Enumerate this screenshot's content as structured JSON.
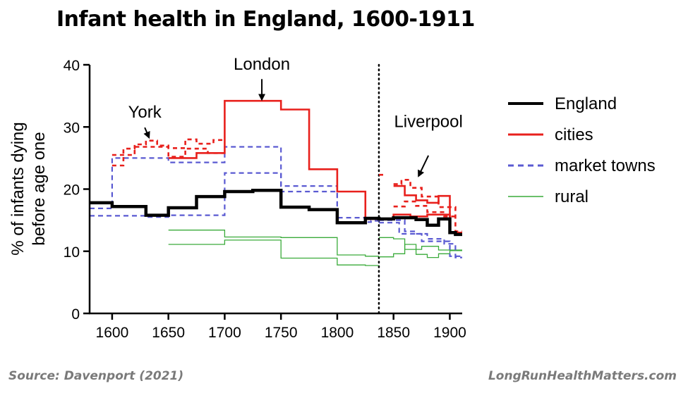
{
  "title": "Infant health in England, 1600-1911",
  "source": "Source: Davenport (2021)",
  "website": "LongRunHealthMatters.com",
  "colors": {
    "england": "#000000",
    "cities": "#e8201c",
    "market_towns": "#5a5ad2",
    "rural": "#3aab3a"
  },
  "chart_data": {
    "type": "line",
    "step": true,
    "title": "Infant health in England, 1600-1911",
    "xlabel": "",
    "ylabel": "% of infants dying before age one",
    "xlim": [
      1580,
      1911
    ],
    "ylim": [
      0,
      40
    ],
    "xticks": [
      1600,
      1650,
      1700,
      1750,
      1800,
      1850,
      1900
    ],
    "yticks": [
      0,
      10,
      20,
      30,
      40
    ],
    "reference_line": {
      "x": 1837,
      "style": "dotted"
    },
    "series": [
      {
        "name": "England",
        "role": "england",
        "lines": [
          [
            [
              1580,
              17.8
            ],
            [
              1600,
              17.8
            ],
            [
              1600,
              17.2
            ],
            [
              1630,
              17.2
            ],
            [
              1630,
              15.8
            ],
            [
              1650,
              15.8
            ],
            [
              1650,
              17.0
            ],
            [
              1675,
              17.0
            ],
            [
              1675,
              18.8
            ],
            [
              1700,
              18.8
            ],
            [
              1700,
              19.6
            ],
            [
              1725,
              19.6
            ],
            [
              1725,
              19.8
            ],
            [
              1750,
              19.8
            ],
            [
              1750,
              17.1
            ],
            [
              1775,
              17.1
            ],
            [
              1775,
              16.7
            ],
            [
              1800,
              16.7
            ],
            [
              1800,
              14.6
            ],
            [
              1825,
              14.6
            ],
            [
              1825,
              15.3
            ],
            [
              1837,
              15.3
            ],
            [
              1837,
              15.2
            ],
            [
              1850,
              15.2
            ],
            [
              1850,
              15.4
            ],
            [
              1870,
              15.4
            ],
            [
              1870,
              15.1
            ],
            [
              1880,
              15.1
            ],
            [
              1880,
              14.2
            ],
            [
              1890,
              14.2
            ],
            [
              1890,
              15.2
            ],
            [
              1900,
              15.2
            ],
            [
              1900,
              13.0
            ],
            [
              1905,
              13.0
            ],
            [
              1905,
              12.7
            ],
            [
              1911,
              12.7
            ]
          ]
        ]
      },
      {
        "name": "cities",
        "role": "cities",
        "lines": [
          [
            [
              1650,
              25.0
            ],
            [
              1675,
              25.0
            ],
            [
              1675,
              25.8
            ],
            [
              1700,
              25.8
            ],
            [
              1700,
              34.2
            ],
            [
              1750,
              34.2
            ],
            [
              1750,
              32.8
            ],
            [
              1775,
              32.8
            ],
            [
              1775,
              23.2
            ],
            [
              1800,
              23.2
            ],
            [
              1800,
              19.6
            ],
            [
              1825,
              19.6
            ],
            [
              1825,
              15.2
            ],
            [
              1837,
              15.2
            ]
          ],
          [
            [
              1850,
              20.5
            ],
            [
              1860,
              20.5
            ],
            [
              1860,
              19.0
            ],
            [
              1870,
              19.0
            ],
            [
              1870,
              18.2
            ],
            [
              1880,
              18.2
            ],
            [
              1880,
              17.8
            ],
            [
              1890,
              17.8
            ],
            [
              1890,
              18.9
            ],
            [
              1900,
              18.9
            ],
            [
              1900,
              13.0
            ],
            [
              1911,
              13.0
            ]
          ],
          [
            [
              1837,
              15.1
            ],
            [
              1850,
              15.1
            ],
            [
              1850,
              15.9
            ],
            [
              1865,
              15.9
            ],
            [
              1865,
              15.6
            ],
            [
              1880,
              15.6
            ],
            [
              1880,
              15.9
            ],
            [
              1900,
              15.9
            ],
            [
              1900,
              13.0
            ],
            [
              1911,
              13.0
            ]
          ]
        ],
        "dashed": [
          [
            [
              1600,
              23.8
            ],
            [
              1610,
              23.8
            ],
            [
              1610,
              26.5
            ],
            [
              1620,
              26.5
            ],
            [
              1620,
              27.2
            ],
            [
              1630,
              27.2
            ],
            [
              1630,
              27.8
            ],
            [
              1640,
              27.8
            ],
            [
              1640,
              27.0
            ],
            [
              1650,
              27.0
            ],
            [
              1650,
              26.6
            ],
            [
              1665,
              26.6
            ],
            [
              1665,
              28.0
            ],
            [
              1675,
              28.0
            ],
            [
              1675,
              27.3
            ],
            [
              1690,
              27.3
            ],
            [
              1690,
              27.9
            ],
            [
              1700,
              27.9
            ]
          ],
          [
            [
              1600,
              25.5
            ],
            [
              1620,
              25.5
            ],
            [
              1620,
              26.8
            ],
            [
              1650,
              26.8
            ],
            [
              1650,
              25.2
            ],
            [
              1665,
              25.2
            ],
            [
              1665,
              26.5
            ],
            [
              1685,
              26.5
            ],
            [
              1685,
              25.8
            ],
            [
              1700,
              25.8
            ]
          ],
          [
            [
              1837,
              22.3
            ],
            [
              1843,
              22.3
            ]
          ],
          [
            [
              1850,
              20.8
            ],
            [
              1857,
              20.8
            ],
            [
              1857,
              21.5
            ],
            [
              1865,
              21.5
            ],
            [
              1865,
              20.2
            ],
            [
              1875,
              20.2
            ],
            [
              1875,
              18.8
            ],
            [
              1890,
              18.8
            ],
            [
              1890,
              17.1
            ],
            [
              1905,
              17.1
            ],
            [
              1905,
              13.2
            ],
            [
              1911,
              13.2
            ]
          ],
          [
            [
              1850,
              17.2
            ],
            [
              1860,
              17.2
            ],
            [
              1860,
              18.0
            ],
            [
              1870,
              18.0
            ],
            [
              1870,
              17.3
            ],
            [
              1880,
              17.3
            ],
            [
              1880,
              16.3
            ],
            [
              1895,
              16.3
            ],
            [
              1895,
              15.6
            ],
            [
              1905,
              15.6
            ]
          ]
        ]
      },
      {
        "name": "market towns",
        "role": "market_towns",
        "dashed": [
          [
            [
              1580,
              16.9
            ],
            [
              1600,
              16.9
            ],
            [
              1600,
              25.0
            ],
            [
              1650,
              25.0
            ],
            [
              1650,
              24.3
            ],
            [
              1700,
              24.3
            ],
            [
              1700,
              26.8
            ],
            [
              1750,
              26.8
            ],
            [
              1750,
              20.5
            ],
            [
              1800,
              20.5
            ],
            [
              1800,
              15.4
            ],
            [
              1837,
              15.4
            ]
          ],
          [
            [
              1580,
              15.7
            ],
            [
              1630,
              15.7
            ],
            [
              1630,
              15.5
            ],
            [
              1650,
              15.5
            ],
            [
              1650,
              15.8
            ],
            [
              1700,
              15.8
            ],
            [
              1700,
              22.6
            ],
            [
              1750,
              22.6
            ],
            [
              1750,
              19.6
            ],
            [
              1800,
              19.6
            ],
            [
              1800,
              14.7
            ],
            [
              1830,
              14.7
            ],
            [
              1830,
              14.9
            ],
            [
              1837,
              14.9
            ]
          ],
          [
            [
              1837,
              15.0
            ],
            [
              1860,
              15.0
            ],
            [
              1860,
              13.2
            ],
            [
              1870,
              13.2
            ],
            [
              1870,
              12.8
            ],
            [
              1880,
              12.8
            ],
            [
              1880,
              12.0
            ],
            [
              1895,
              12.0
            ],
            [
              1895,
              11.2
            ],
            [
              1905,
              11.2
            ],
            [
              1905,
              9.0
            ],
            [
              1911,
              9.0
            ]
          ],
          [
            [
              1837,
              14.6
            ],
            [
              1855,
              14.6
            ],
            [
              1855,
              12.8
            ],
            [
              1875,
              12.8
            ],
            [
              1875,
              11.6
            ],
            [
              1900,
              11.6
            ],
            [
              1900,
              9.2
            ],
            [
              1911,
              9.2
            ]
          ]
        ]
      },
      {
        "name": "rural",
        "role": "rural",
        "lines": [
          [
            [
              1650,
              13.4
            ],
            [
              1700,
              13.4
            ],
            [
              1700,
              12.3
            ],
            [
              1750,
              12.3
            ],
            [
              1750,
              12.2
            ],
            [
              1800,
              12.2
            ],
            [
              1800,
              9.4
            ],
            [
              1825,
              9.4
            ],
            [
              1825,
              9.2
            ],
            [
              1837,
              9.2
            ]
          ],
          [
            [
              1650,
              11.1
            ],
            [
              1700,
              11.1
            ],
            [
              1700,
              11.8
            ],
            [
              1750,
              11.8
            ],
            [
              1750,
              8.9
            ],
            [
              1800,
              8.9
            ],
            [
              1800,
              7.8
            ],
            [
              1825,
              7.8
            ],
            [
              1825,
              7.7
            ],
            [
              1837,
              7.7
            ]
          ],
          [
            [
              1837,
              12.2
            ],
            [
              1850,
              12.2
            ],
            [
              1850,
              12.0
            ],
            [
              1860,
              12.0
            ],
            [
              1860,
              10.3
            ],
            [
              1875,
              10.3
            ],
            [
              1875,
              10.8
            ],
            [
              1890,
              10.8
            ],
            [
              1890,
              10.2
            ],
            [
              1911,
              10.2
            ]
          ],
          [
            [
              1837,
              9.1
            ],
            [
              1850,
              9.1
            ],
            [
              1850,
              9.6
            ],
            [
              1860,
              9.6
            ],
            [
              1860,
              11.1
            ],
            [
              1870,
              11.1
            ],
            [
              1870,
              9.5
            ],
            [
              1880,
              9.5
            ],
            [
              1880,
              9.0
            ],
            [
              1890,
              9.0
            ],
            [
              1890,
              9.6
            ],
            [
              1900,
              9.6
            ],
            [
              1900,
              10.1
            ],
            [
              1911,
              10.1
            ]
          ]
        ]
      }
    ],
    "legend": {
      "position": "right",
      "items": [
        {
          "label": "England",
          "role": "england",
          "style": "solid",
          "width": 4
        },
        {
          "label": "cities",
          "role": "cities",
          "style": "solid",
          "width": 3
        },
        {
          "label": "market towns",
          "role": "market_towns",
          "style": "dashed",
          "width": 3
        },
        {
          "label": "rural",
          "role": "rural",
          "style": "solid",
          "width": 1.5
        }
      ]
    },
    "annotations": [
      {
        "name": "york",
        "text": "York",
        "x": 1629,
        "y": 31.5,
        "arrow_from_y": 29.9,
        "arrow_to_y": 28.3
      },
      {
        "name": "london",
        "text": "London",
        "x": 1733,
        "y": 39.2,
        "arrow_from_y": 37.7,
        "arrow_to_y": 34.4
      },
      {
        "name": "liverpool",
        "text": "Liverpool",
        "x": 1881,
        "y": 30.0,
        "arrow_from_y": 25.4,
        "arrow_to_y": 22.1
      }
    ]
  }
}
